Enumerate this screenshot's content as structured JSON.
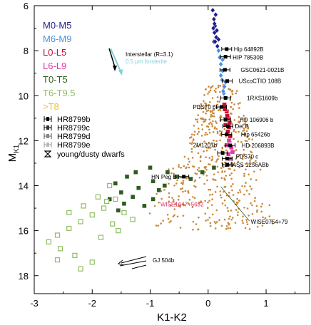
{
  "chart_data": {
    "type": "scatter",
    "title": "",
    "xlabel": "K1-K2",
    "ylabel": "M",
    "ylabel_sub": "K1",
    "xlim": [
      -3,
      1.75
    ],
    "ylim": [
      18.8,
      6
    ],
    "xticks": [
      "-3",
      "-2",
      "-1",
      "0",
      "1"
    ],
    "xtick_values": [
      -3,
      -2,
      -1,
      0,
      1
    ],
    "yticks": [
      "6",
      "8",
      "10",
      "12",
      "14",
      "16",
      "18"
    ],
    "ytick_values": [
      6,
      8,
      10,
      12,
      14,
      16,
      18
    ],
    "grid": false,
    "colors": {
      "M0-M5": "#1e1e8c",
      "M6-M9": "#4a90e2",
      "L0-L5": "#c8102e",
      "L6-L9": "#e23aa3",
      "T0-T5": "#2e5c1f",
      "T6-T9.5": "#8fbc63",
      "T8": "#f5c518",
      "field_dots": "#c8893a",
      "companion": "#000000",
      "wise_label": "#d6326e",
      "interstellar": "#7fd0d8"
    },
    "legend": {
      "placement": "top-left",
      "spectral_types": [
        "M0-M5",
        "M6-M9",
        "L0-L5",
        "L6-L9",
        "T0-T5",
        "T6-T9.5",
        ">T8"
      ],
      "companions": [
        "HR8799b",
        "HR8799c",
        "HR8799d",
        "HR8799e"
      ],
      "young": "young/dusty dwarfs"
    },
    "annotations": {
      "interstellar_line1": "Interstellar (R=3.1)",
      "interstellar_line2": "0.5 µm forsterite",
      "gj504b": "GJ 504b"
    },
    "labeled_objects": [
      {
        "name": "Hip 64892B",
        "x": 0.32,
        "y": 7.93
      },
      {
        "name": "HIP 78530B",
        "x": 0.3,
        "y": 8.27
      },
      {
        "name": "GSC0621-0021B",
        "x": 0.29,
        "y": 8.85
      },
      {
        "name": "UScoCTIO 108B",
        "x": 0.33,
        "y": 9.35
      },
      {
        "name": "1RXS1609b",
        "x": 0.3,
        "y": 10.1
      },
      {
        "name": "PDS70 b",
        "x": 0.23,
        "y": 10.5
      },
      {
        "name": "HD 106906 b",
        "x": 0.3,
        "y": 11.07
      },
      {
        "name": "Del B",
        "x": 0.34,
        "y": 11.36
      },
      {
        "name": "Hip 65426b",
        "x": 0.32,
        "y": 11.72
      },
      {
        "name": "HD 206893B",
        "x": 0.38,
        "y": 12.21
      },
      {
        "name": "2M1207b",
        "x": 0.25,
        "y": 12.55
      },
      {
        "name": "PDS70 c",
        "x": 0.33,
        "y": 12.8
      },
      {
        "name": "2MASS 1256ABb",
        "x": 0.33,
        "y": 13.07
      },
      {
        "name": "HN Peg B",
        "x": -0.42,
        "y": 13.6
      },
      {
        "name": "WISE1647+5632",
        "x": 0.12,
        "y": 14.1
      },
      {
        "name": "WISE0754+79",
        "x": 0.22,
        "y": 14.05
      }
    ],
    "series": [
      {
        "name": "M0-M5",
        "marker": "diamond",
        "points": [
          [
            0.08,
            6.2
          ],
          [
            0.1,
            6.6
          ],
          [
            0.12,
            6.9
          ],
          [
            0.11,
            7.2
          ],
          [
            0.14,
            7.4
          ],
          [
            0.1,
            7.6
          ],
          [
            0.16,
            7.8
          ],
          [
            0.13,
            6.4
          ],
          [
            0.09,
            7.0
          ],
          [
            0.15,
            7.1
          ],
          [
            0.12,
            7.6
          ],
          [
            0.18,
            7.5
          ],
          [
            0.11,
            6.8
          ]
        ]
      },
      {
        "name": "M6-M9",
        "marker": "diamond",
        "points": [
          [
            0.18,
            8.0
          ],
          [
            0.2,
            8.3
          ],
          [
            0.22,
            8.6
          ],
          [
            0.25,
            8.9
          ],
          [
            0.24,
            9.3
          ],
          [
            0.28,
            9.6
          ],
          [
            0.27,
            9.9
          ],
          [
            0.22,
            9.1
          ],
          [
            0.3,
            9.4
          ],
          [
            0.25,
            8.4
          ],
          [
            0.26,
            9.8
          ]
        ]
      },
      {
        "name": "L0-L5",
        "marker": "square",
        "points": [
          [
            0.28,
            10.4
          ],
          [
            0.32,
            10.7
          ],
          [
            0.35,
            11.0
          ],
          [
            0.3,
            11.3
          ],
          [
            0.34,
            11.6
          ],
          [
            0.37,
            11.2
          ],
          [
            0.33,
            10.9
          ],
          [
            0.36,
            11.4
          ],
          [
            0.29,
            10.6
          ],
          [
            0.38,
            11.8
          ]
        ]
      },
      {
        "name": "L6-L9",
        "marker": "square",
        "points": [
          [
            0.36,
            12.0
          ],
          [
            0.4,
            12.3
          ],
          [
            0.35,
            12.6
          ],
          [
            0.33,
            12.2
          ],
          [
            0.42,
            12.5
          ],
          [
            0.38,
            12.8
          ]
        ]
      },
      {
        "name": "T0-T5",
        "marker": "square",
        "points": [
          [
            0.1,
            13.2
          ],
          [
            -0.1,
            13.4
          ],
          [
            -0.3,
            13.7
          ],
          [
            -0.55,
            13.6
          ],
          [
            -0.75,
            14.0
          ],
          [
            -0.95,
            13.8
          ],
          [
            -1.2,
            14.1
          ],
          [
            -1.3,
            14.5
          ],
          [
            -1.5,
            14.3
          ],
          [
            -1.45,
            14.8
          ],
          [
            -1.7,
            14.6
          ],
          [
            -1.1,
            14.9
          ],
          [
            -0.95,
            14.6
          ],
          [
            -1.55,
            15.1
          ],
          [
            -0.85,
            14.2
          ],
          [
            -1.0,
            13.2
          ],
          [
            -0.7,
            13.4
          ],
          [
            -1.4,
            13.6
          ],
          [
            -1.6,
            13.9
          ],
          [
            -1.25,
            13.4
          ]
        ]
      },
      {
        "name": "T6-T9.5",
        "marker": "open-square",
        "points": [
          [
            -1.6,
            14.6
          ],
          [
            -1.8,
            15.0
          ],
          [
            -2.0,
            15.3
          ],
          [
            -2.2,
            15.6
          ],
          [
            -2.4,
            15.9
          ],
          [
            -2.6,
            16.2
          ],
          [
            -2.75,
            16.5
          ],
          [
            -2.55,
            16.8
          ],
          [
            -2.3,
            17.1
          ],
          [
            -2.0,
            17.4
          ],
          [
            -2.2,
            17.7
          ],
          [
            -1.85,
            16.3
          ],
          [
            -1.65,
            15.7
          ],
          [
            -1.45,
            15.2
          ],
          [
            -1.55,
            16.0
          ],
          [
            -1.9,
            14.5
          ],
          [
            -2.15,
            14.9
          ],
          [
            -1.7,
            14.0
          ],
          [
            -2.4,
            15.2
          ],
          [
            -2.6,
            17.3
          ],
          [
            -1.3,
            15.5
          ],
          [
            -1.75,
            14.7
          ]
        ]
      }
    ],
    "companion_points": [
      [
        0.32,
        7.93
      ],
      [
        0.3,
        8.27
      ],
      [
        0.29,
        8.85
      ],
      [
        0.33,
        9.35
      ],
      [
        0.3,
        10.1
      ],
      [
        0.23,
        10.5
      ],
      [
        0.3,
        11.07
      ],
      [
        0.34,
        11.36
      ],
      [
        0.32,
        11.72
      ],
      [
        0.38,
        12.21
      ],
      [
        0.25,
        12.55
      ],
      [
        0.33,
        12.8
      ],
      [
        0.33,
        13.07
      ],
      [
        -0.42,
        13.6
      ]
    ]
  }
}
